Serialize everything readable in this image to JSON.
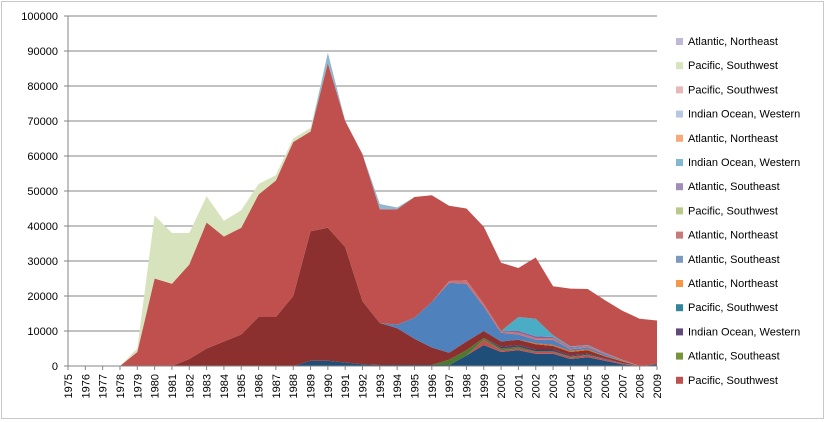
{
  "chart_data": {
    "type": "area",
    "stacked": true,
    "title": "",
    "xlabel": "",
    "ylabel": "",
    "ylim": [
      0,
      100000
    ],
    "yticks": [
      0,
      10000,
      20000,
      30000,
      40000,
      50000,
      60000,
      70000,
      80000,
      90000,
      100000
    ],
    "ytick_labels": [
      "0",
      "10000",
      "20000",
      "30000",
      "40000",
      "50000",
      "60000",
      "70000",
      "80000",
      "90000",
      "100000"
    ],
    "x": [
      "1975",
      "1976",
      "1977",
      "1978",
      "1979",
      "1980",
      "1981",
      "1982",
      "1983",
      "1984",
      "1985",
      "1986",
      "1987",
      "1988",
      "1989",
      "1990",
      "1991",
      "1992",
      "1993",
      "1994",
      "1995",
      "1996",
      "1997",
      "1998",
      "1999",
      "2000",
      "2001",
      "2002",
      "2003",
      "2004",
      "2005",
      "2006",
      "2007",
      "2008",
      "2009"
    ],
    "grid": "horizontal",
    "legend_position": "right",
    "series": [
      {
        "name": "Pacific, Southwest",
        "color": "#1f4e79",
        "values": [
          0,
          0,
          0,
          0,
          0,
          0,
          0,
          0,
          0,
          0,
          0,
          0,
          0,
          0,
          1500,
          1500,
          1000,
          500,
          300,
          300,
          300,
          300,
          300,
          3000,
          6000,
          4000,
          4500,
          3500,
          3500,
          2000,
          2500,
          1500,
          500,
          0,
          500
        ]
      },
      {
        "name": "Pacific, Southwest",
        "color": "#c0504d",
        "values": [
          0,
          0,
          0,
          0,
          0,
          0,
          0,
          0,
          0,
          0,
          0,
          0,
          0,
          0,
          0,
          0,
          0,
          0,
          0,
          0,
          0,
          0,
          0,
          0,
          1500,
          500,
          500,
          500,
          500,
          500,
          500,
          500,
          200,
          0,
          0
        ]
      },
      {
        "name": "Atlantic, Southeast",
        "color": "#4b7a2e",
        "values": [
          0,
          0,
          0,
          0,
          0,
          0,
          0,
          0,
          0,
          0,
          0,
          0,
          0,
          0,
          0,
          0,
          0,
          0,
          0,
          0,
          0,
          0,
          1500,
          1500,
          500,
          500,
          500,
          200,
          200,
          200,
          200,
          0,
          0,
          0,
          0
        ]
      },
      {
        "name": "Indian Ocean, Western",
        "color": "#4a3a6e",
        "values": [
          0,
          0,
          0,
          0,
          0,
          0,
          0,
          0,
          0,
          0,
          0,
          0,
          0,
          0,
          0,
          0,
          0,
          0,
          0,
          0,
          0,
          0,
          0,
          0,
          0,
          500,
          500,
          500,
          500,
          300,
          300,
          200,
          100,
          0,
          0
        ]
      },
      {
        "name": "Pacific, Southwest",
        "color": "#8c2f2f",
        "values": [
          0,
          0,
          0,
          0,
          0,
          0,
          0,
          2000,
          5000,
          7000,
          9000,
          14000,
          14000,
          20000,
          37000,
          38000,
          33000,
          18000,
          12000,
          10500,
          7500,
          5000,
          2000,
          2500,
          2000,
          1500,
          1500,
          1500,
          1000,
          1000,
          1000,
          500,
          500,
          0,
          0
        ]
      },
      {
        "name": "Atlantic, Northeast",
        "color": "#e46c0a",
        "values": [
          0,
          0,
          0,
          0,
          0,
          0,
          0,
          0,
          0,
          0,
          0,
          0,
          0,
          0,
          0,
          0,
          0,
          0,
          0,
          0,
          0,
          0,
          0,
          0,
          0,
          0,
          0,
          300,
          300,
          300,
          300,
          200,
          200,
          0,
          0
        ]
      },
      {
        "name": "Atlantic, Southeast",
        "color": "#4f81bd",
        "values": [
          0,
          0,
          0,
          0,
          0,
          0,
          0,
          0,
          0,
          0,
          0,
          0,
          0,
          0,
          0,
          0,
          0,
          0,
          0,
          1000,
          6000,
          13000,
          20000,
          16500,
          7000,
          2500,
          1500,
          1000,
          1500,
          500,
          500,
          500,
          200,
          0,
          0
        ]
      },
      {
        "name": "Atlantic, Northeast",
        "color": "#d07070",
        "values": [
          0,
          0,
          0,
          0,
          0,
          0,
          0,
          0,
          0,
          0,
          0,
          0,
          0,
          0,
          0,
          0,
          0,
          0,
          0,
          0,
          0,
          0,
          500,
          1000,
          800,
          500,
          500,
          500,
          500,
          300,
          300,
          200,
          100,
          0,
          0
        ]
      },
      {
        "name": "Pacific, Southwest",
        "color": "#9bbb59",
        "values": [
          0,
          0,
          0,
          0,
          0,
          0,
          0,
          0,
          0,
          0,
          0,
          0,
          0,
          0,
          0,
          0,
          0,
          0,
          0,
          0,
          0,
          0,
          0,
          0,
          0,
          0,
          0,
          0,
          0,
          0,
          0,
          0,
          0,
          0,
          0
        ]
      },
      {
        "name": "Atlantic, Southeast",
        "color": "#8064a2",
        "values": [
          0,
          0,
          0,
          0,
          0,
          0,
          0,
          0,
          0,
          0,
          0,
          0,
          0,
          0,
          0,
          0,
          0,
          0,
          0,
          0,
          0,
          0,
          0,
          0,
          0,
          0,
          500,
          500,
          300,
          300,
          200,
          200,
          0,
          0,
          0
        ]
      },
      {
        "name": "Indian Ocean, Western",
        "color": "#4bacc6",
        "values": [
          0,
          0,
          0,
          0,
          0,
          0,
          0,
          0,
          0,
          0,
          0,
          0,
          0,
          0,
          0,
          0,
          0,
          0,
          0,
          0,
          0,
          0,
          0,
          0,
          0,
          0,
          4000,
          5000,
          500,
          200,
          200,
          0,
          0,
          0,
          0
        ]
      },
      {
        "name": "Atlantic, Northeast",
        "color": "#f79646",
        "values": [
          0,
          0,
          0,
          0,
          0,
          0,
          0,
          0,
          0,
          0,
          0,
          0,
          0,
          0,
          0,
          0,
          0,
          0,
          0,
          0,
          0,
          0,
          0,
          0,
          0,
          0,
          0,
          0,
          0,
          0,
          0,
          0,
          0,
          0,
          0
        ]
      },
      {
        "name": "Indian Ocean, Western",
        "color": "#b7c7e0",
        "values": [
          0,
          0,
          0,
          0,
          0,
          0,
          0,
          0,
          0,
          0,
          0,
          0,
          0,
          0,
          0,
          0,
          0,
          0,
          0,
          0,
          0,
          0,
          0,
          0,
          0,
          0,
          0,
          0,
          0,
          0,
          0,
          0,
          0,
          0,
          0
        ]
      },
      {
        "name": "Pacific, Southwest",
        "color": "#e6b9b8",
        "values": [
          0,
          0,
          0,
          0,
          0,
          0,
          0,
          0,
          0,
          0,
          0,
          0,
          0,
          0,
          0,
          0,
          0,
          0,
          0,
          0,
          0,
          0,
          0,
          0,
          0,
          0,
          0,
          0,
          0,
          0,
          0,
          0,
          0,
          0,
          0
        ]
      },
      {
        "name": "Pacific, Southwest",
        "color": "#bf504d",
        "values": [
          0,
          0,
          0,
          0,
          4000,
          25000,
          23500,
          27000,
          36000,
          30000,
          30500,
          35000,
          39000,
          44000,
          28500,
          47000,
          36000,
          42000,
          32500,
          33000,
          34500,
          30500,
          21500,
          20500,
          22000,
          19500,
          14000,
          17500,
          14000,
          16500,
          16000,
          15000,
          14000,
          13500,
          12500
        ]
      },
      {
        "name": "Atlantic, Northeast",
        "color": "#8fb8d0",
        "values": [
          0,
          0,
          0,
          0,
          0,
          0,
          0,
          0,
          0,
          0,
          0,
          0,
          0,
          0,
          0,
          3000,
          0,
          0,
          1500,
          500,
          0,
          0,
          0,
          0,
          0,
          0,
          0,
          0,
          0,
          0,
          0,
          0,
          0,
          0,
          0
        ]
      },
      {
        "name": "Pacific, Southwest",
        "color": "#d6e3bc",
        "values": [
          0,
          0,
          0,
          0,
          1000,
          18000,
          14500,
          9000,
          7500,
          4500,
          5000,
          3000,
          1500,
          1000,
          1000,
          0,
          0,
          0,
          0,
          0,
          0,
          0,
          0,
          0,
          0,
          0,
          0,
          0,
          0,
          0,
          0,
          0,
          0,
          0,
          0
        ]
      },
      {
        "name": "Atlantic, Northeast",
        "color": "#c0b8d6",
        "values": [
          0,
          0,
          0,
          0,
          0,
          0,
          0,
          0,
          0,
          0,
          0,
          0,
          0,
          0,
          0,
          0,
          0,
          0,
          0,
          0,
          0,
          0,
          0,
          0,
          0,
          0,
          0,
          0,
          0,
          0,
          0,
          0,
          0,
          0,
          0
        ]
      }
    ],
    "legend": [
      {
        "label": "Atlantic, Northeast",
        "color": "#c0b8d6"
      },
      {
        "label": "Pacific, Southwest",
        "color": "#d6e3bc"
      },
      {
        "label": "Pacific, Southwest",
        "color": "#e6b9b8"
      },
      {
        "label": "Indian Ocean, Western",
        "color": "#b7c7e0"
      },
      {
        "label": "Atlantic, Northeast",
        "color": "#f7a97a"
      },
      {
        "label": "Indian Ocean, Western",
        "color": "#7fb8d0"
      },
      {
        "label": "Atlantic, Southeast",
        "color": "#a08cb8"
      },
      {
        "label": "Pacific, Southwest",
        "color": "#b8c98a"
      },
      {
        "label": "Atlantic, Northeast",
        "color": "#c97a78"
      },
      {
        "label": "Atlantic, Southeast",
        "color": "#7d99c2"
      },
      {
        "label": "Atlantic, Northeast",
        "color": "#f79646"
      },
      {
        "label": "Pacific, Southwest",
        "color": "#31859c"
      },
      {
        "label": "Indian Ocean, Western",
        "color": "#604a7b"
      },
      {
        "label": "Atlantic, Southeast",
        "color": "#77933c"
      },
      {
        "label": "Pacific, Southwest",
        "color": "#c0504d"
      }
    ]
  }
}
